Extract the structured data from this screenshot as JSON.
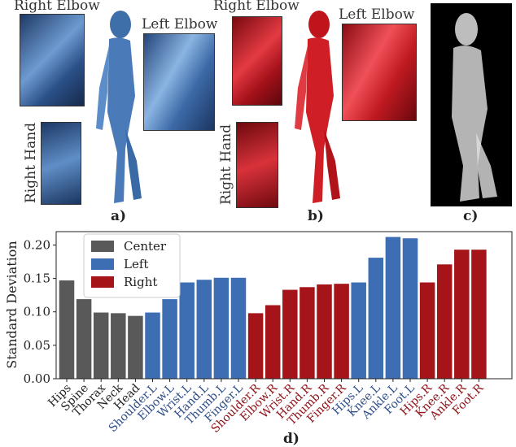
{
  "panels": {
    "a": {
      "label": "a)",
      "inset_labels": [
        "Right Elbow",
        "Left Elbow",
        "Right Hand"
      ],
      "color": "#3f6fa8"
    },
    "b": {
      "label": "b)",
      "inset_labels": [
        "Right Elbow",
        "Left Elbow",
        "Right Hand"
      ],
      "color": "#c0141c"
    },
    "c": {
      "label": "c)"
    },
    "d": {
      "label": "d)"
    }
  },
  "chart_data": {
    "type": "bar",
    "ylabel": "Standard Deviation",
    "ylim": [
      0,
      0.22
    ],
    "yticks": [
      "0.00",
      "0.05",
      "0.10",
      "0.15",
      "0.20"
    ],
    "categories": [
      "Hips",
      "Spine",
      "Thorax",
      "Neck",
      "Head",
      "Shoulder.L",
      "Elbow.L",
      "Wrist.L",
      "Hand.L",
      "Thumb.L",
      "Finger.L",
      "Shoulder.R",
      "Elbow.R",
      "Wrist.R",
      "Hand.R",
      "Thumb.R",
      "Finger.R",
      "Hips.L",
      "Knee.L",
      "Ankle.L",
      "Foot.L",
      "Hips.R",
      "Knee.R",
      "Ankle.R",
      "Foot.R"
    ],
    "values": [
      0.147,
      0.119,
      0.099,
      0.098,
      0.094,
      0.099,
      0.119,
      0.144,
      0.148,
      0.151,
      0.151,
      0.098,
      0.11,
      0.133,
      0.137,
      0.141,
      0.142,
      0.144,
      0.181,
      0.212,
      0.21,
      0.144,
      0.171,
      0.193,
      0.193
    ],
    "groups": [
      "Center",
      "Center",
      "Center",
      "Center",
      "Center",
      "Left",
      "Left",
      "Left",
      "Left",
      "Left",
      "Left",
      "Right",
      "Right",
      "Right",
      "Right",
      "Right",
      "Right",
      "Left",
      "Left",
      "Left",
      "Left",
      "Right",
      "Right",
      "Right",
      "Right"
    ],
    "legend": [
      {
        "name": "Center",
        "color": "#595959"
      },
      {
        "name": "Left",
        "color": "#3d6eb4"
      },
      {
        "name": "Right",
        "color": "#a51419"
      }
    ],
    "label_colors": {
      "Center": "#222222",
      "Left": "#2d4d8a",
      "Right": "#8e1016"
    },
    "legend_position": "top-left",
    "grid": false
  }
}
